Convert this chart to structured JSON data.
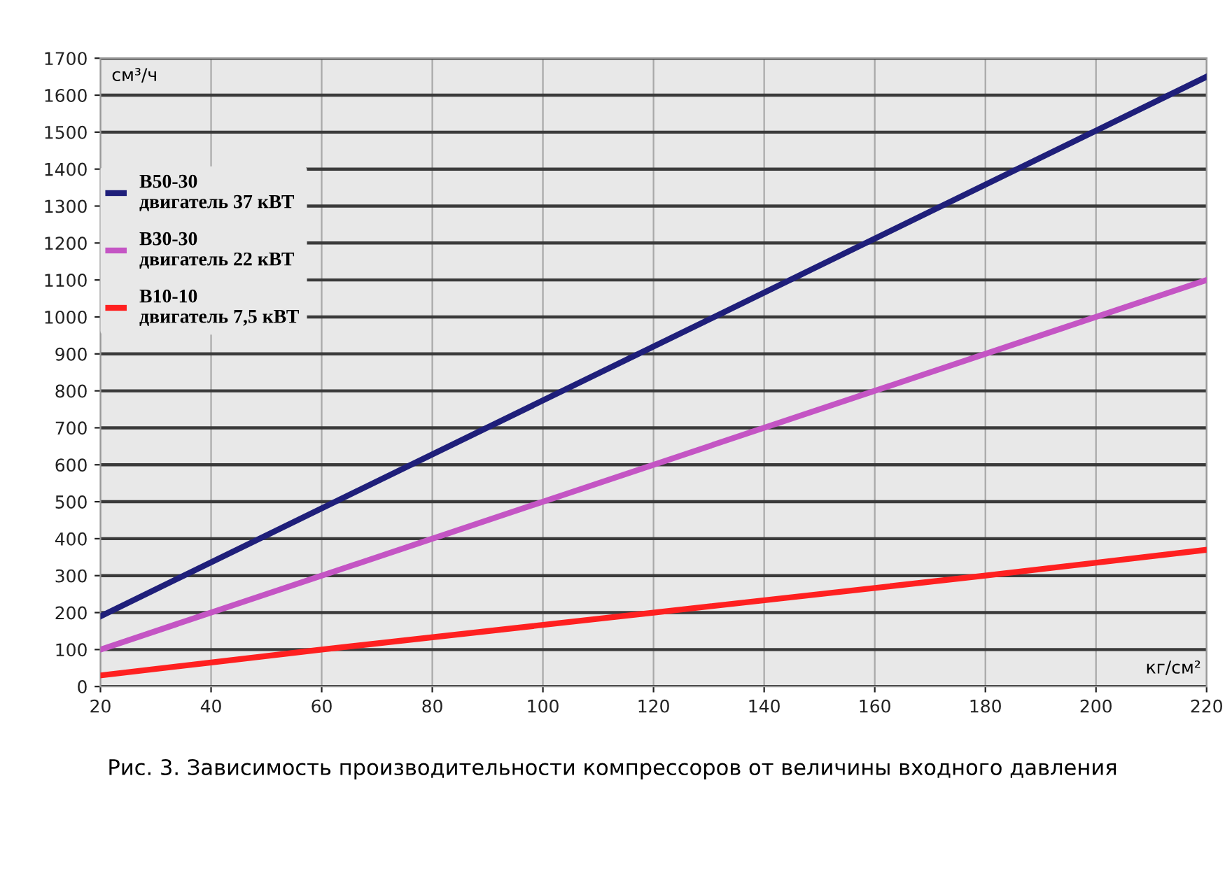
{
  "chart_data": {
    "type": "line",
    "ylabel": "см³/ч",
    "xlabel": "кг/см²",
    "xlim": [
      20,
      220
    ],
    "xticks": [
      20,
      40,
      60,
      80,
      100,
      120,
      140,
      160,
      180,
      200,
      220
    ],
    "ylim": [
      0,
      1700
    ],
    "yticks": [
      0,
      100,
      200,
      300,
      400,
      500,
      600,
      700,
      800,
      900,
      1000,
      1100,
      1200,
      1300,
      1400,
      1500,
      1600,
      1700
    ],
    "grid": true,
    "legend": "top left",
    "marker": "none",
    "line_style": "solid",
    "series": [
      {
        "name": "В50-30\nдвигатель 37 кВТ",
        "color": "#1f1f7a",
        "x": [
          20,
          220
        ],
        "values": [
          190,
          1650
        ]
      },
      {
        "name": "В30-30\nдвигатель 22 кВТ",
        "color": "#c455c4",
        "x": [
          20,
          220
        ],
        "values": [
          100,
          1100
        ]
      },
      {
        "name": "В10-10\nдвигатель 7,5 кВТ",
        "color": "#ff2020",
        "x": [
          20,
          40,
          60,
          120,
          180,
          220
        ],
        "values": [
          30,
          65,
          100,
          200,
          300,
          370
        ]
      }
    ],
    "annotations": [
      "Рис. 3. Зависимость производительности компрессоров от величины входного давления"
    ]
  }
}
